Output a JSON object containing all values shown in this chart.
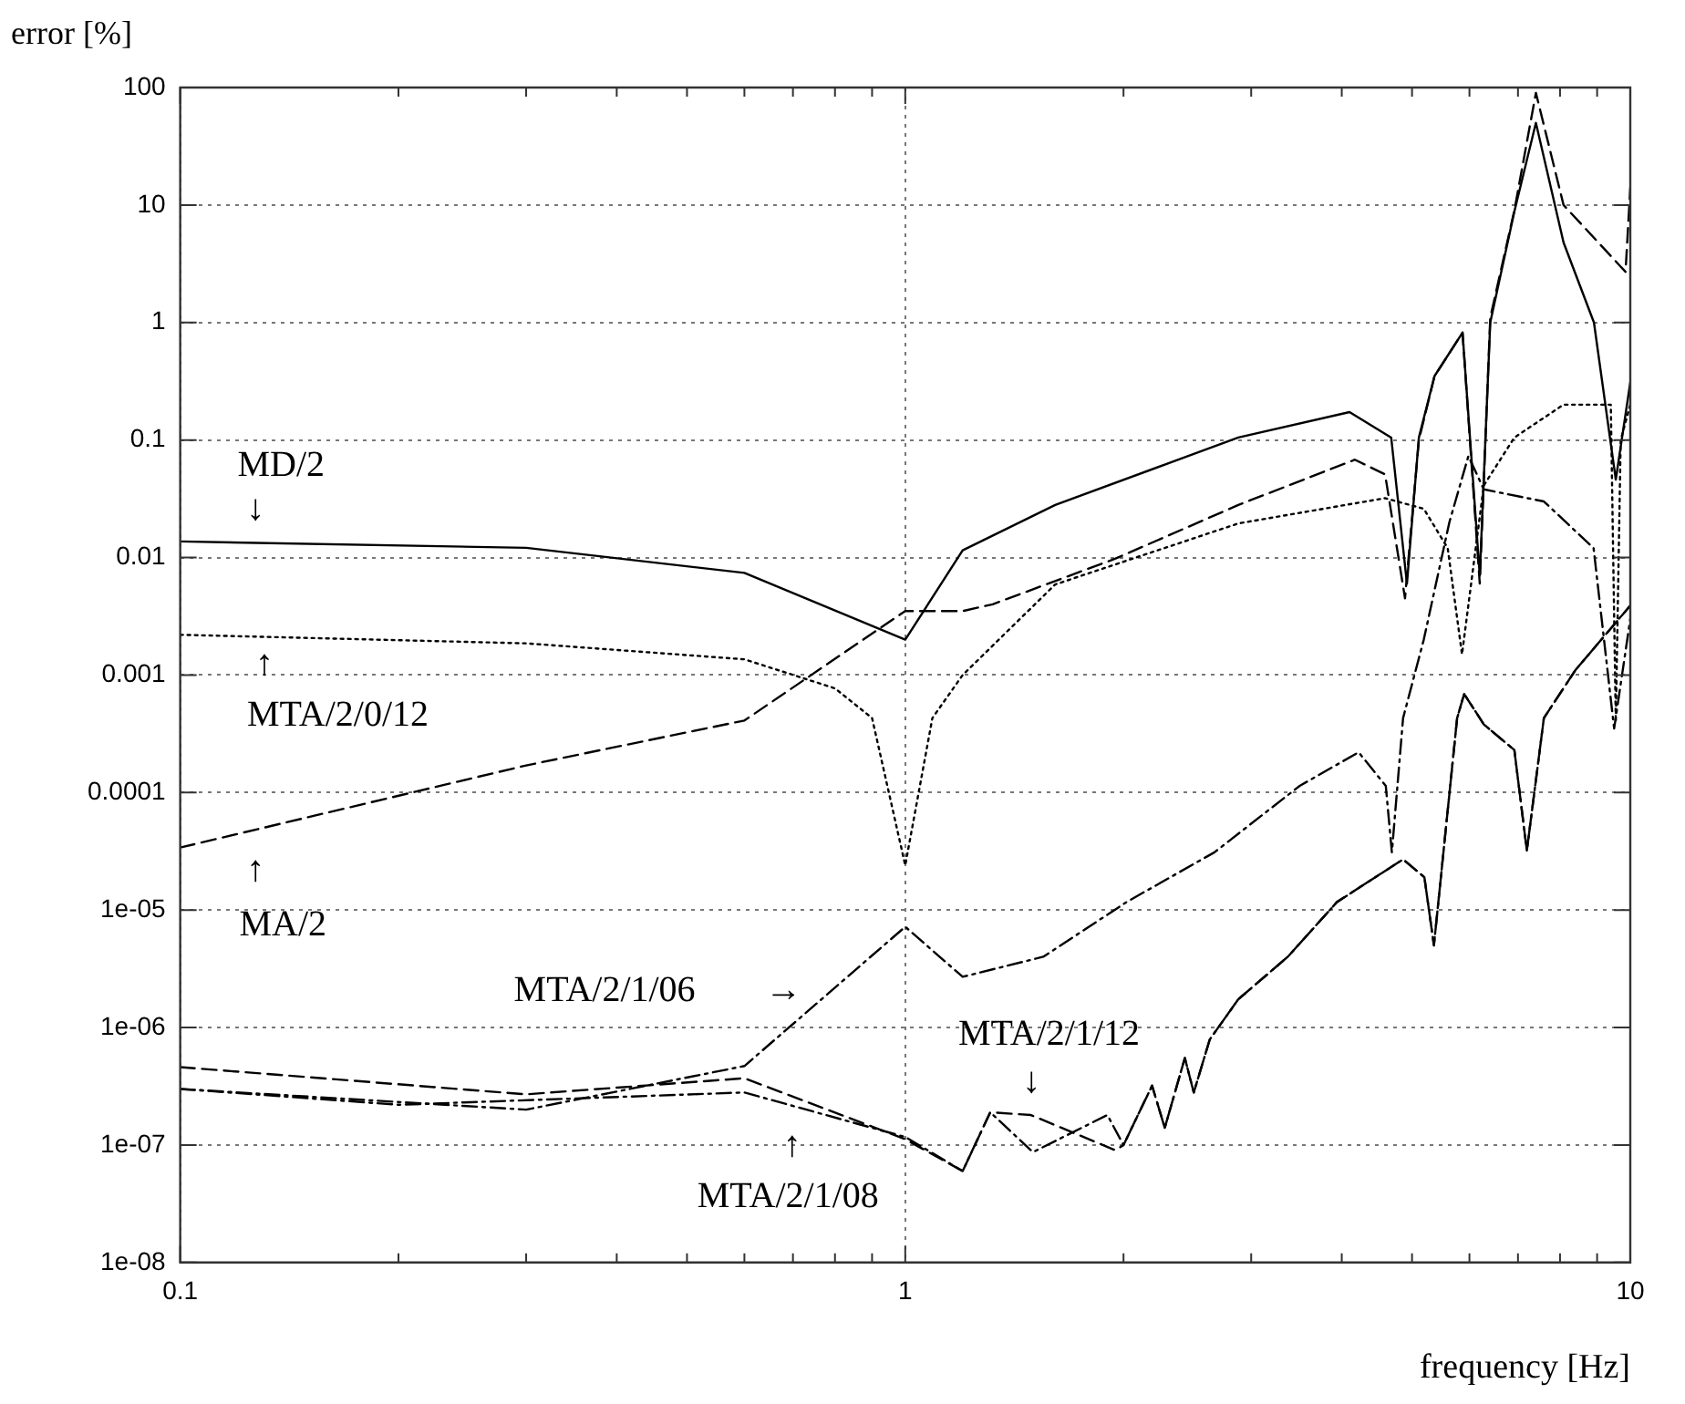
{
  "chart_data": {
    "type": "line",
    "xlabel": "frequency [Hz]",
    "ylabel": "error [%]",
    "log": "xy",
    "grid": true,
    "legend": false,
    "marker": "none",
    "xlim": [
      0.1,
      10
    ],
    "xticks": [
      0.1,
      {
        "value": 0.2,
        "label": null
      },
      {
        "value": 0.3,
        "label": null
      },
      {
        "value": 0.4,
        "label": null
      },
      {
        "value": 0.5,
        "label": null
      },
      {
        "value": 0.6,
        "label": null
      },
      {
        "value": 0.7,
        "label": null
      },
      {
        "value": 0.8,
        "label": null
      },
      {
        "value": 0.9,
        "label": null
      },
      1,
      {
        "value": 2,
        "label": null
      },
      {
        "value": 3,
        "label": null
      },
      {
        "value": 4,
        "label": null
      },
      {
        "value": 5,
        "label": null
      },
      {
        "value": 6,
        "label": null
      },
      {
        "value": 7,
        "label": null
      },
      {
        "value": 8,
        "label": null
      },
      {
        "value": 9,
        "label": null
      },
      10
    ],
    "ylim": [
      1e-08,
      100
    ],
    "yticks": [
      {
        "value": 1e-08,
        "label": "1e-08"
      },
      {
        "value": 1e-07,
        "label": "1e-07"
      },
      {
        "value": 1e-06,
        "label": "1e-06"
      },
      {
        "value": 1e-05,
        "label": "1e-05"
      },
      0.0001,
      0.001,
      0.01,
      0.1,
      1,
      10,
      100
    ],
    "annotations": [
      "↓",
      "↑",
      "↑",
      "→",
      "↓",
      "↑"
    ],
    "series": [
      {
        "name": "MD/2",
        "color": "#000000",
        "line_style": "solid",
        "x": [
          0.1,
          0.3,
          0.6,
          1,
          1.2,
          1.61,
          2.88,
          4.1,
          4.68,
          4.92,
          5.11,
          5.37,
          5.87,
          6.2,
          6.41,
          6.92,
          7.41,
          8.09,
          8.91,
          9.55,
          10
        ],
        "values": [
          0.0137,
          0.0121,
          0.0074,
          0.002,
          0.0115,
          0.028,
          0.105,
          0.173,
          0.105,
          0.006,
          0.105,
          0.35,
          0.82,
          0.007,
          1.0,
          8.8,
          50,
          4.8,
          1.0,
          0.046,
          0.31
        ]
      },
      {
        "name": "MA/2",
        "color": "#000000",
        "line_style": "dashed",
        "x": [
          0.1,
          0.3,
          0.6,
          1,
          1.2,
          1.32,
          1.95,
          2.88,
          4.17,
          4.59,
          4.89,
          5.11,
          5.37,
          5.87,
          6.2,
          6.41,
          6.92,
          7.41,
          8.09,
          9.85,
          10
        ],
        "values": [
          3.4e-05,
          0.00017,
          0.00041,
          0.0035,
          0.0035,
          0.004,
          0.0098,
          0.028,
          0.068,
          0.051,
          0.0045,
          0.1,
          0.35,
          0.82,
          0.006,
          1.1,
          9,
          90,
          10,
          2.7,
          14
        ]
      },
      {
        "name": "MTA/2/0/12",
        "color": "#000000",
        "line_style": "dotted",
        "x": [
          0.1,
          0.3,
          0.6,
          0.8,
          0.9,
          1,
          1.09,
          1.2,
          1.61,
          2.88,
          4.59,
          5.19,
          5.6,
          5.86,
          6.28,
          6.92,
          8.09,
          9.4,
          9.55,
          9.7,
          10
        ],
        "values": [
          0.0022,
          0.00186,
          0.00136,
          0.00077,
          0.00043,
          2.4e-05,
          0.00043,
          0.001,
          0.0059,
          0.0195,
          0.032,
          0.026,
          0.012,
          0.0015,
          0.041,
          0.105,
          0.2,
          0.2,
          0.0004,
          0.1,
          0.2
        ]
      },
      {
        "name": "MTA/2/1/06",
        "color": "#000000",
        "line_style": "dashdot",
        "x": [
          0.1,
          0.3,
          0.6,
          1,
          1.2,
          1.55,
          2.02,
          2.67,
          3.5,
          4.22,
          4.6,
          4.69,
          4.86,
          5.19,
          5.63,
          5.98,
          6.28,
          7.6,
          8.9,
          9.5,
          10
        ],
        "values": [
          3e-07,
          2e-07,
          4.7e-07,
          7.2e-06,
          2.7e-06,
          4e-06,
          1.17e-05,
          3.1e-05,
          0.000114,
          0.00022,
          0.000114,
          3.1e-05,
          0.00043,
          0.002,
          0.02,
          0.073,
          0.038,
          0.03,
          0.012,
          0.00035,
          0.003
        ]
      },
      {
        "name": "MTA/2/1/12",
        "color": "#000000",
        "line_style": "dashed",
        "x": [
          0.1,
          0.3,
          0.6,
          1,
          1.2,
          1.31,
          1.49,
          1.95,
          2.0,
          2.19,
          2.28,
          2.43,
          2.5,
          2.63,
          2.88,
          3.37,
          3.94,
          4.86,
          5.2,
          5.36,
          5.77,
          5.9,
          6.28,
          6.92,
          7.2,
          7.6,
          8.4,
          10
        ],
        "values": [
          4.6e-07,
          2.7e-07,
          3.7e-07,
          1.12e-07,
          6e-08,
          1.9e-07,
          1.8e-07,
          9e-08,
          1e-07,
          3.2e-07,
          1.4e-07,
          5.5e-07,
          2.8e-07,
          7.9e-07,
          1.74e-06,
          4e-06,
          1.17e-05,
          2.7e-05,
          1.9e-05,
          5e-06,
          0.00043,
          0.00069,
          0.00038,
          0.00023,
          3.2e-05,
          0.00043,
          0.0011,
          0.0039
        ]
      },
      {
        "name": "MTA/2/1/08",
        "color": "#000000",
        "line_style": "dashdot",
        "x": [
          0.1,
          0.2,
          0.6,
          1,
          1.2,
          1.31,
          1.5,
          1.9,
          2.0,
          2.19,
          2.28,
          2.43,
          2.5,
          2.63,
          2.88,
          3.37,
          3.94,
          4.86,
          5.2,
          5.36,
          5.77,
          5.9,
          6.28,
          6.92,
          7.2,
          7.6,
          8.4,
          10
        ],
        "values": [
          3e-07,
          2.2e-07,
          2.8e-07,
          1.17e-07,
          6e-08,
          1.9e-07,
          8.7e-08,
          1.8e-07,
          1e-07,
          3.2e-07,
          1.4e-07,
          5.5e-07,
          2.8e-07,
          7.9e-07,
          1.74e-06,
          4e-06,
          1.17e-05,
          2.7e-05,
          1.9e-05,
          5e-06,
          0.00043,
          0.00069,
          0.00038,
          0.00023,
          3.2e-05,
          0.00043,
          0.0011,
          0.0039
        ]
      }
    ]
  }
}
